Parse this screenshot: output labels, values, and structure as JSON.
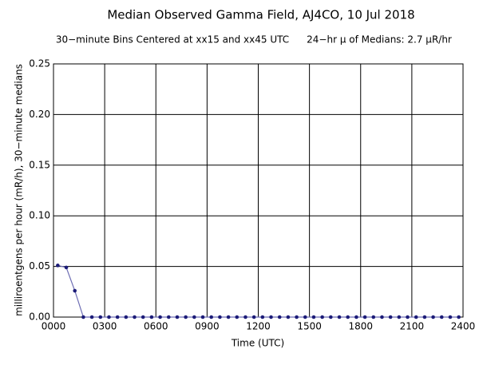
{
  "chart_data": {
    "type": "line",
    "title": "Median Observed Gamma Field, AJ4CO, 10 Jul 2018",
    "subtitle": "30−minute Bins Centered at xx15 and xx45 UTC",
    "annotation": "24−hr μ of Medians: 2.7 μR/hr",
    "x_label": "Time (UTC)",
    "y_label": "milliroentgens per hour (mR/h), 30−minute medians",
    "x": [
      0.25,
      0.75,
      1.25,
      1.75,
      2.25,
      2.75,
      3.25,
      3.75,
      4.25,
      4.75,
      5.25,
      5.75,
      6.25,
      6.75,
      7.25,
      7.75,
      8.25,
      8.75,
      9.25,
      9.75,
      10.25,
      10.75,
      11.25,
      11.75,
      12.25,
      12.75,
      13.25,
      13.75,
      14.25,
      14.75,
      15.25,
      15.75,
      16.25,
      16.75,
      17.25,
      17.75,
      18.25,
      18.75,
      19.25,
      19.75,
      20.25,
      20.75,
      21.25,
      21.75,
      22.25,
      22.75,
      23.25,
      23.75
    ],
    "series": [
      {
        "name": "median",
        "color": "#6e6eb4",
        "marker_color": "#1c1c78",
        "values": [
          0.051,
          0.049,
          0.026,
          0,
          0,
          0,
          0,
          0,
          0,
          0,
          0,
          0,
          0,
          0,
          0,
          0,
          0,
          0,
          0,
          0,
          0,
          0,
          0,
          0,
          0,
          0,
          0,
          0,
          0,
          0,
          0,
          0,
          0,
          0,
          0,
          0,
          0,
          0,
          0,
          0,
          0,
          0,
          0,
          0,
          0,
          0,
          0,
          0
        ]
      }
    ],
    "xlim": [
      0,
      24
    ],
    "xticks": [
      {
        "value": 0,
        "label": "0000"
      },
      {
        "value": 3,
        "label": "0300"
      },
      {
        "value": 6,
        "label": "0600"
      },
      {
        "value": 9,
        "label": "0900"
      },
      {
        "value": 12,
        "label": "1200"
      },
      {
        "value": 15,
        "label": "1500"
      },
      {
        "value": 18,
        "label": "1800"
      },
      {
        "value": 21,
        "label": "2100"
      },
      {
        "value": 24,
        "label": "2400"
      }
    ],
    "ylim": [
      0,
      0.25
    ],
    "yticks": [
      {
        "value": 0,
        "label": "0.00"
      },
      0.05,
      {
        "value": 0.1,
        "label": "0.10"
      },
      0.15,
      {
        "value": 0.2,
        "label": "0.20"
      },
      0.25
    ],
    "grid": true
  }
}
